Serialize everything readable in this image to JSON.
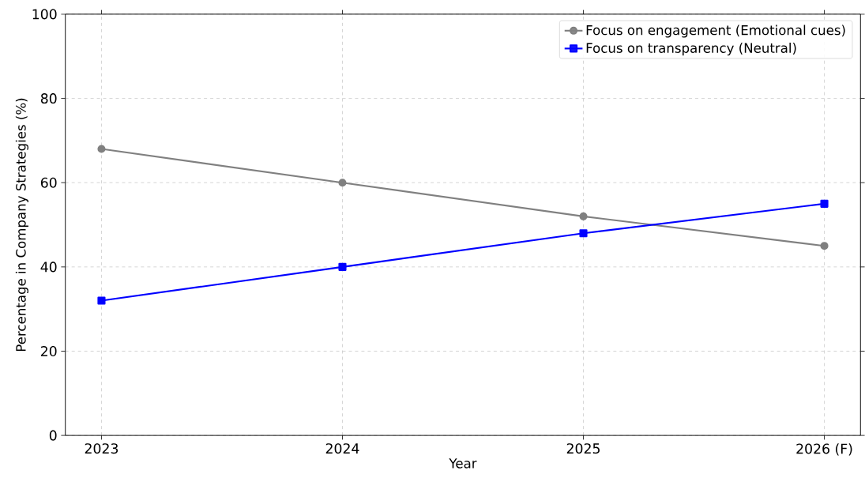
{
  "chart_data": {
    "type": "line",
    "xlabel": "Year",
    "ylabel": "Percentage in Company Strategies (%)",
    "categories": [
      "2023",
      "2024",
      "2025",
      "2026 (F)"
    ],
    "series": [
      {
        "name": "Focus on engagement (Emotional cues)",
        "color": "#808080",
        "marker": "circle",
        "values": [
          68,
          60,
          52,
          45
        ]
      },
      {
        "name": "Focus on transparency (Neutral)",
        "color": "#0000ff",
        "marker": "square",
        "values": [
          32,
          40,
          48,
          55
        ]
      }
    ],
    "ylim": [
      0,
      100
    ],
    "yticks": [
      0,
      20,
      40,
      60,
      80,
      100
    ],
    "grid": true,
    "legend": "top right",
    "line_style": "solid"
  }
}
